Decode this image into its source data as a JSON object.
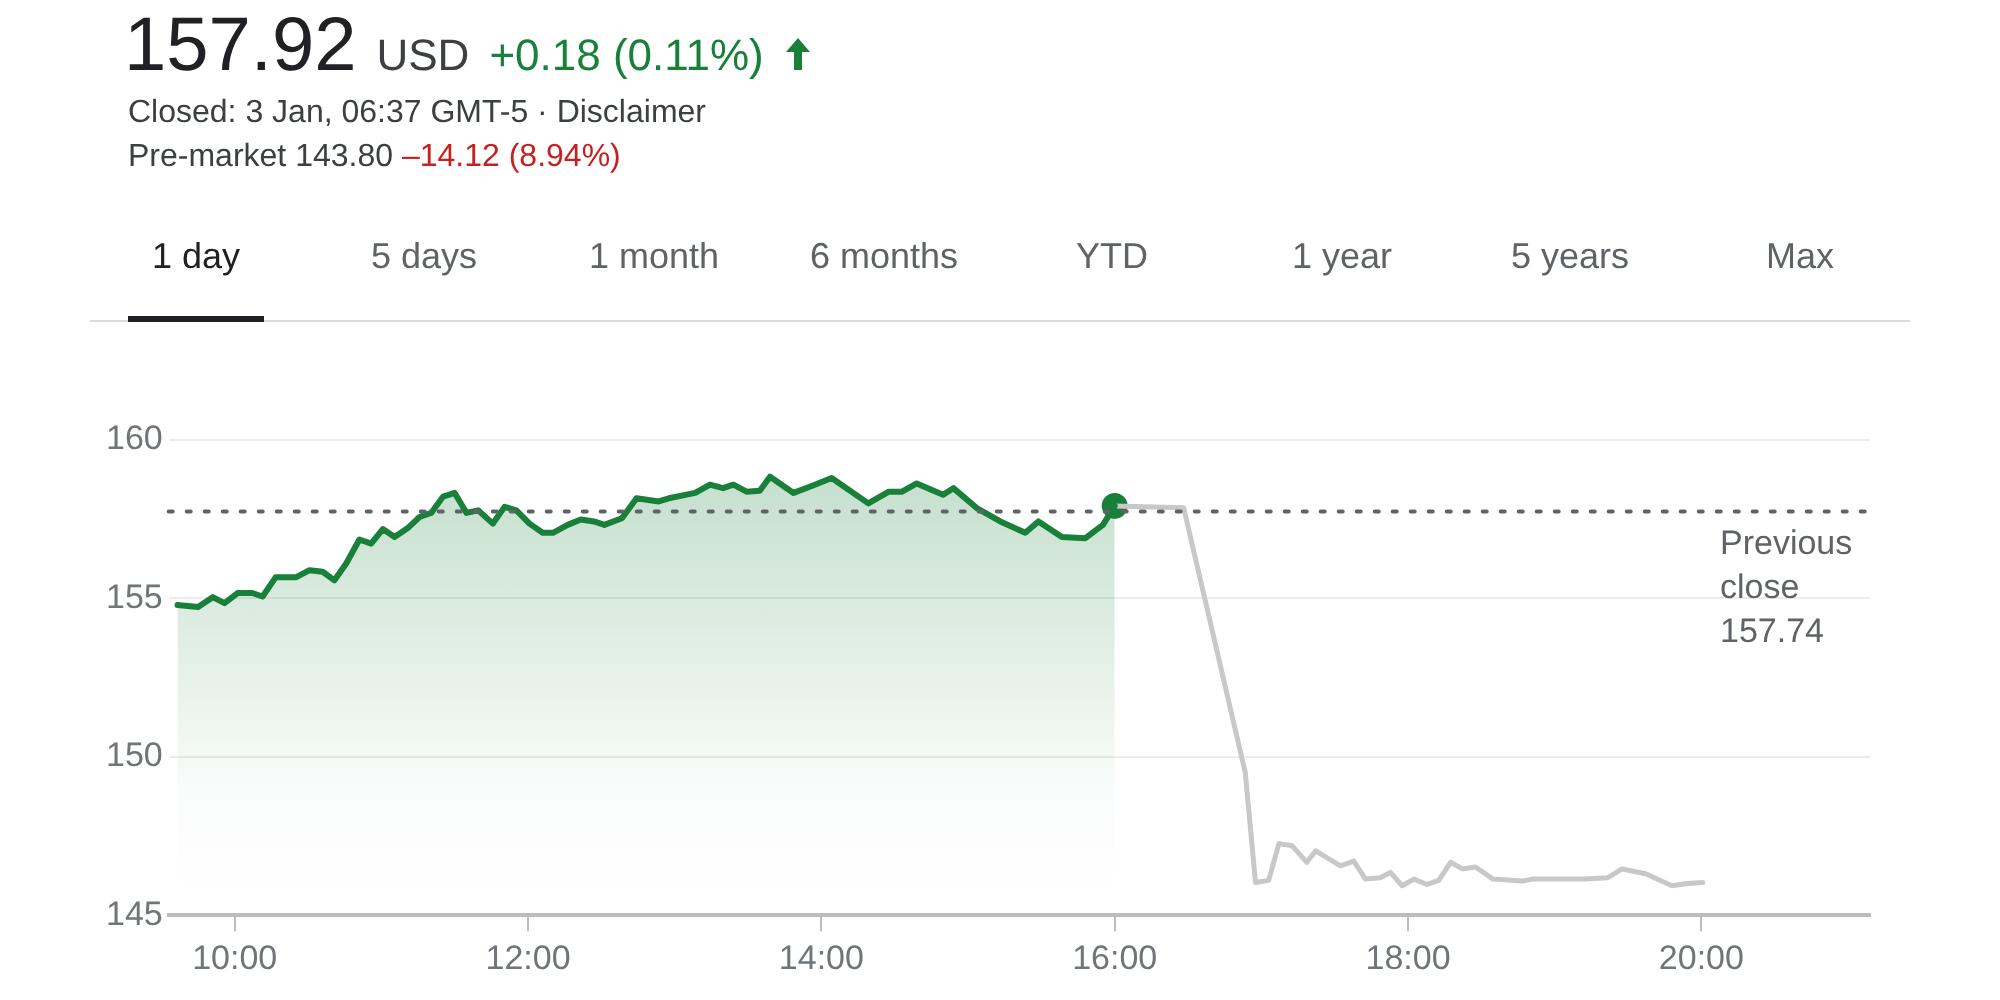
{
  "chart_data": {
    "type": "line",
    "title": "157.92",
    "subtitle": "Closed: 3 Jan, 06:37 GMT-5 · Disclaimer",
    "annotations": [
      "USD",
      "+0.18 (0.11%)",
      "Pre-market 143.80",
      "–14.12 (8.94%)",
      "1 day",
      "5 days",
      "1 month",
      "6 months",
      "YTD",
      "1 year",
      "5 years",
      "Max"
    ],
    "xlim": [
      9.55,
      21.15
    ],
    "xticks": [
      {
        "value": 10,
        "label": "10:00"
      },
      {
        "value": 12,
        "label": "12:00"
      },
      {
        "value": 14,
        "label": "14:00"
      },
      {
        "value": 16,
        "label": "16:00"
      },
      {
        "value": 18,
        "label": "18:00"
      },
      {
        "value": 20,
        "label": "20:00"
      }
    ],
    "ylim": [
      145,
      160
    ],
    "yticks": [
      145,
      150,
      155,
      160
    ],
    "grid": "y",
    "legend": false,
    "ref_lines": [
      {
        "axis": "y",
        "value": 157.74,
        "label": "Previous close 157.74",
        "line_style": "dotted",
        "color": "#5f6368"
      }
    ],
    "series": [
      {
        "type": "area",
        "color": "#188038",
        "x": [
          9.61,
          9.75,
          9.85,
          9.93,
          10.02,
          10.12,
          10.19,
          10.28,
          10.42,
          10.51,
          10.6,
          10.68,
          10.76,
          10.85,
          10.93,
          11.01,
          11.09,
          11.18,
          11.26,
          11.34,
          11.42,
          11.5,
          11.58,
          11.66,
          11.76,
          11.84,
          11.92,
          12.01,
          12.1,
          12.17,
          12.27,
          12.36,
          12.45,
          12.52,
          12.64,
          12.74,
          12.89,
          12.96,
          13.14,
          13.24,
          13.33,
          13.4,
          13.49,
          13.58,
          13.65,
          13.81,
          13.93,
          14.07,
          14.32,
          14.46,
          14.55,
          14.65,
          14.83,
          14.9,
          15.06,
          15.22,
          15.39,
          15.48,
          15.64,
          15.8,
          15.92,
          16.0
        ],
        "values": [
          154.79,
          154.73,
          155.04,
          154.85,
          155.17,
          155.17,
          155.06,
          155.67,
          155.67,
          155.89,
          155.84,
          155.57,
          156.1,
          156.86,
          156.73,
          157.19,
          156.94,
          157.22,
          157.57,
          157.7,
          158.21,
          158.33,
          157.7,
          157.78,
          157.36,
          157.89,
          157.78,
          157.36,
          157.07,
          157.07,
          157.32,
          157.49,
          157.43,
          157.32,
          157.53,
          158.16,
          158.06,
          158.16,
          158.33,
          158.59,
          158.48,
          158.59,
          158.37,
          158.4,
          158.84,
          158.33,
          158.54,
          158.8,
          158.0,
          158.37,
          158.37,
          158.63,
          158.27,
          158.48,
          157.85,
          157.43,
          157.07,
          157.43,
          156.94,
          156.9,
          157.32,
          157.92
        ]
      },
      {
        "type": "line",
        "color": "#c8c8c8",
        "x": [
          16.0,
          16.47,
          16.89,
          16.96,
          17.05,
          17.12,
          17.21,
          17.31,
          17.37,
          17.54,
          17.63,
          17.71,
          17.81,
          17.88,
          17.96,
          18.04,
          18.13,
          18.21,
          18.29,
          18.37,
          18.46,
          18.58,
          18.78,
          18.85,
          19.2,
          19.36,
          19.46,
          19.62,
          19.8,
          19.89,
          20.01
        ],
        "values": [
          157.92,
          157.86,
          149.51,
          146.03,
          146.1,
          147.26,
          147.19,
          146.67,
          147.03,
          146.56,
          146.71,
          146.14,
          146.18,
          146.35,
          145.93,
          146.14,
          145.97,
          146.1,
          146.67,
          146.46,
          146.52,
          146.14,
          146.08,
          146.14,
          146.14,
          146.18,
          146.46,
          146.31,
          145.93,
          145.99,
          146.03
        ]
      },
      {
        "type": "scatter",
        "color": "#188038",
        "marker": "circle",
        "x": [
          16.0
        ],
        "values": [
          157.92
        ]
      }
    ]
  }
}
